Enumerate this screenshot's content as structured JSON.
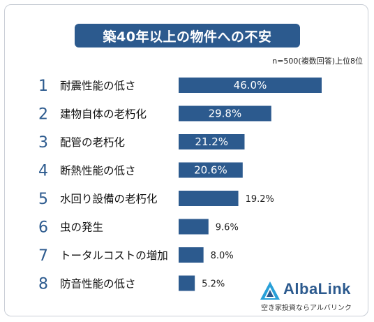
{
  "title": "築40年以上の物件への不安",
  "note": "n=500(複数回答)上位8位",
  "chart_data": {
    "type": "bar",
    "orientation": "horizontal",
    "ranks": [
      "1",
      "2",
      "3",
      "4",
      "5",
      "6",
      "7",
      "8"
    ],
    "categories": [
      "耐震性能の低さ",
      "建物自体の老朽化",
      "配管の老朽化",
      "断熱性能の低さ",
      "水回り設備の老朽化",
      "虫の発生",
      "トータルコストの増加",
      "防音性能の低さ"
    ],
    "values": [
      46.0,
      29.8,
      21.2,
      20.6,
      19.2,
      9.6,
      8.0,
      5.2
    ],
    "value_labels": [
      "46.0%",
      "29.8%",
      "21.2%",
      "20.6%",
      "19.2%",
      "9.6%",
      "8.0%",
      "5.2%"
    ],
    "bar_color": "#2c5a8e",
    "rank_color": "#2c5a8e",
    "xlim": [
      0,
      46
    ]
  },
  "logo": {
    "name": "AlbaLink",
    "tagline": "空き家投資ならアルバリンク",
    "mark_color": "#29a0d8",
    "text_color": "#2c5a8e"
  }
}
